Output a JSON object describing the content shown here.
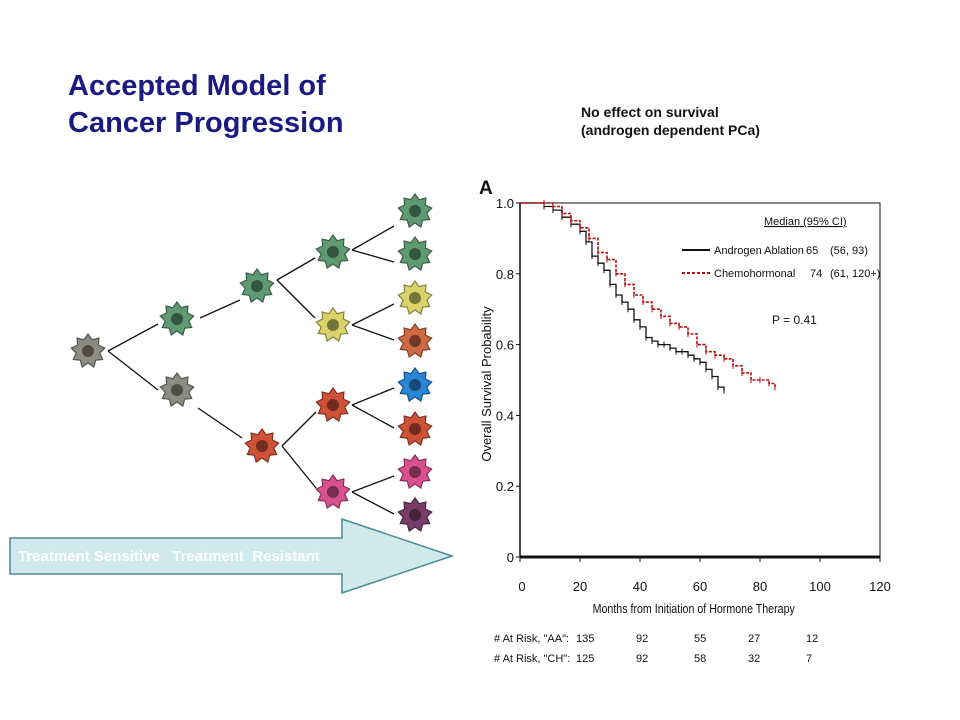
{
  "slide": {
    "title_lines": [
      "Accepted Model of",
      "Cancer Progression"
    ],
    "subtitle_lines": [
      "No effect on survival",
      "(androgen dependent PCa)"
    ]
  },
  "tree": {
    "cells": [
      {
        "id": "c0",
        "color": "#8c8c80"
      },
      {
        "id": "c1",
        "color": "#5f9a72"
      },
      {
        "id": "c2",
        "color": "#8c8c80"
      },
      {
        "id": "c3",
        "color": "#5f9a72"
      },
      {
        "id": "c4",
        "color": "#cf5138"
      },
      {
        "id": "c5",
        "color": "#5f9a72"
      },
      {
        "id": "c6",
        "color": "#d9d36a"
      },
      {
        "id": "c7",
        "color": "#cf5138"
      },
      {
        "id": "c8",
        "color": "#d9528f"
      },
      {
        "id": "c9",
        "color": "#5f9a72"
      },
      {
        "id": "c10",
        "color": "#5f9a72"
      },
      {
        "id": "c11",
        "color": "#d9d36a"
      },
      {
        "id": "c12",
        "color": "#cf6a45"
      },
      {
        "id": "c13",
        "color": "#2a86d6"
      },
      {
        "id": "c14",
        "color": "#cf5138"
      },
      {
        "id": "c15",
        "color": "#d9528f"
      },
      {
        "id": "c16",
        "color": "#7a3d6a"
      }
    ],
    "arrow_text": "Treatment Sensitive   Treatment  Resistant",
    "arrow_color": "#cfe9ec"
  },
  "chart_data": {
    "type": "line",
    "panel_label": "A",
    "xlabel": "Months from Initiation of Hormone Therapy",
    "ylabel": "Overall Survival Probability",
    "xlim": [
      0,
      120
    ],
    "ylim": [
      0,
      1.0
    ],
    "x_ticks": [
      "0",
      "20",
      "40",
      "60",
      "80",
      "100",
      "120"
    ],
    "y_ticks": [
      "0",
      "0.2",
      "0.4",
      "0.6",
      "0.8",
      "1.0"
    ],
    "legend_title": "Median  (95% CI)",
    "legend_location": "top-right",
    "annotation": "P = 0.41",
    "series": [
      {
        "name": "Androgen Ablation",
        "median": "65",
        "ci": "(56, 93)",
        "color": "#111111",
        "dash": "solid",
        "x": [
          0,
          5,
          8,
          11,
          14,
          17,
          20,
          22,
          24,
          26,
          28,
          30,
          32,
          34,
          36,
          38,
          40,
          42,
          44,
          46,
          48,
          50,
          52,
          54,
          56,
          58,
          60,
          62,
          64,
          66,
          68
        ],
        "y": [
          1.0,
          1.0,
          0.99,
          0.98,
          0.96,
          0.94,
          0.92,
          0.89,
          0.85,
          0.83,
          0.81,
          0.77,
          0.74,
          0.72,
          0.7,
          0.67,
          0.65,
          0.62,
          0.61,
          0.6,
          0.6,
          0.59,
          0.58,
          0.58,
          0.57,
          0.56,
          0.55,
          0.53,
          0.51,
          0.48,
          0.47
        ]
      },
      {
        "name": "Chemohormonal",
        "median": "74",
        "ci": "(61, 120+)",
        "color": "#b01010",
        "dash": "dashed",
        "x": [
          0,
          5,
          8,
          11,
          14,
          17,
          20,
          23,
          26,
          29,
          32,
          35,
          38,
          41,
          44,
          47,
          50,
          53,
          56,
          59,
          62,
          65,
          68,
          71,
          74,
          77,
          80,
          83,
          85
        ],
        "y": [
          1.0,
          1.0,
          1.0,
          0.99,
          0.97,
          0.95,
          0.93,
          0.9,
          0.86,
          0.84,
          0.8,
          0.77,
          0.74,
          0.72,
          0.7,
          0.68,
          0.66,
          0.65,
          0.63,
          0.6,
          0.58,
          0.57,
          0.56,
          0.54,
          0.52,
          0.5,
          0.5,
          0.49,
          0.48
        ]
      }
    ],
    "at_risk": {
      "rows": [
        {
          "label": "# At Risk, \"AA\":",
          "values": [
            "135",
            "92",
            "55",
            "27",
            "12"
          ]
        },
        {
          "label": "# At Risk, \"CH\":",
          "values": [
            "125",
            "92",
            "58",
            "32",
            "7"
          ]
        }
      ],
      "months": [
        0,
        20,
        40,
        60,
        80
      ]
    }
  }
}
